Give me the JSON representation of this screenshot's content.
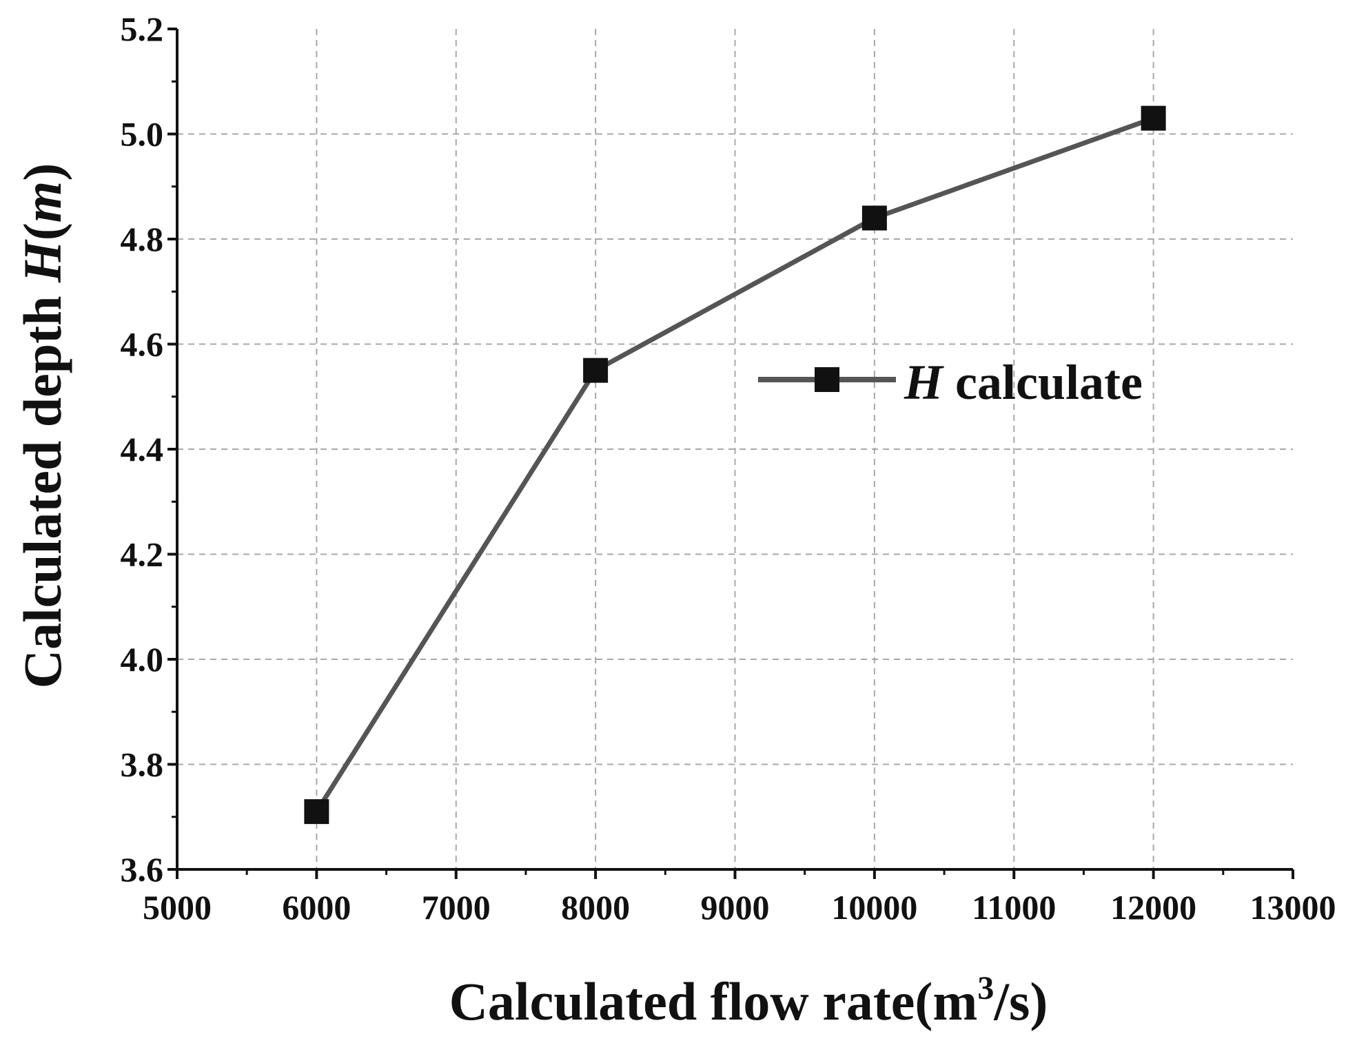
{
  "chart_data": {
    "type": "line",
    "title": "",
    "xlabel": "Calculated flow rate(m³/s)",
    "xlabel_parts": {
      "main": "Calculated flow rate(m",
      "sup": "3",
      "tail": "/s)"
    },
    "ylabel": "Calculated depth H(m)",
    "ylabel_parts": {
      "pre": "Calculated depth ",
      "italic_sym": "H",
      "open": "(",
      "italic_unit": "m",
      "close": ")"
    },
    "xlim": [
      5000,
      13000
    ],
    "ylim": [
      3.6,
      5.2
    ],
    "x_ticks": [
      "5000",
      "6000",
      "7000",
      "8000",
      "9000",
      "10000",
      "11000",
      "12000",
      "13000"
    ],
    "y_ticks": [
      "3.6",
      "3.8",
      "4.0",
      "4.2",
      "4.4",
      "4.6",
      "4.8",
      "5.0",
      "5.2"
    ],
    "grid": true,
    "legend_position": "center-right",
    "series": [
      {
        "name": "H calculate",
        "name_parts": {
          "italic_sym": "H",
          "rest": " calculate"
        },
        "color": "#555555",
        "marker": "square",
        "marker_color": "#111111",
        "x": [
          6000,
          8000,
          10000,
          12000
        ],
        "values": [
          3.71,
          4.55,
          4.84,
          5.03
        ]
      }
    ]
  }
}
